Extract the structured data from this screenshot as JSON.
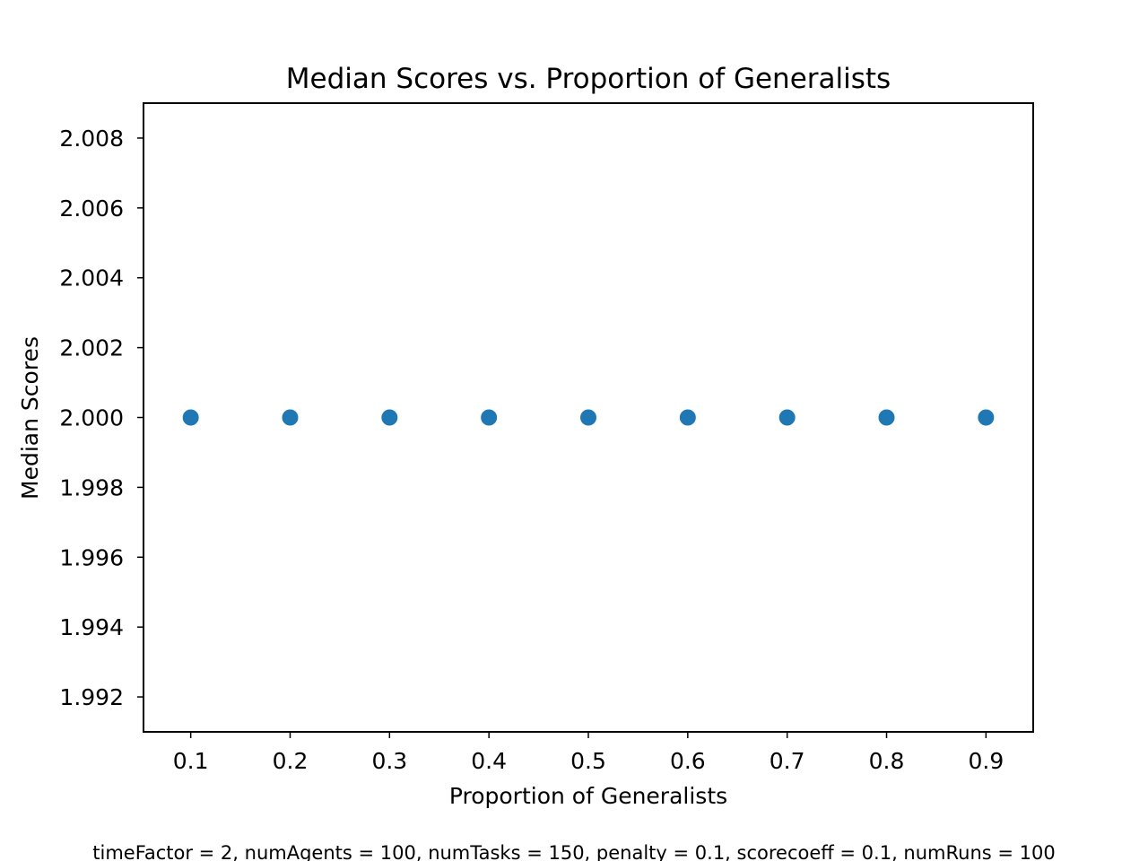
{
  "chart_data": {
    "type": "scatter",
    "title": "Median Scores vs. Proportion of Generalists",
    "xlabel": "Proportion of Generalists",
    "ylabel": "Median Scores",
    "xlim": [
      0.0525,
      0.9475
    ],
    "ylim": [
      1.991,
      2.009
    ],
    "x_ticks": [
      "0.1",
      "0.2",
      "0.3",
      "0.4",
      "0.5",
      "0.6",
      "0.7",
      "0.8",
      "0.9"
    ],
    "y_ticks": [
      "1.992",
      "1.994",
      "1.996",
      "1.998",
      "2.000",
      "2.002",
      "2.004",
      "2.006",
      "2.008"
    ],
    "grid": false,
    "x": [
      0.1,
      0.2,
      0.3,
      0.4,
      0.5,
      0.6,
      0.7,
      0.8,
      0.9
    ],
    "y": [
      2.0,
      2.0,
      2.0,
      2.0,
      2.0,
      2.0,
      2.0,
      2.0,
      2.0
    ],
    "marker_color": "#1f77b4",
    "footer": "timeFactor = 2, numAgents = 100, numTasks = 150, penalty = 0.1, scorecoeff = 0.1, numRuns = 100"
  }
}
